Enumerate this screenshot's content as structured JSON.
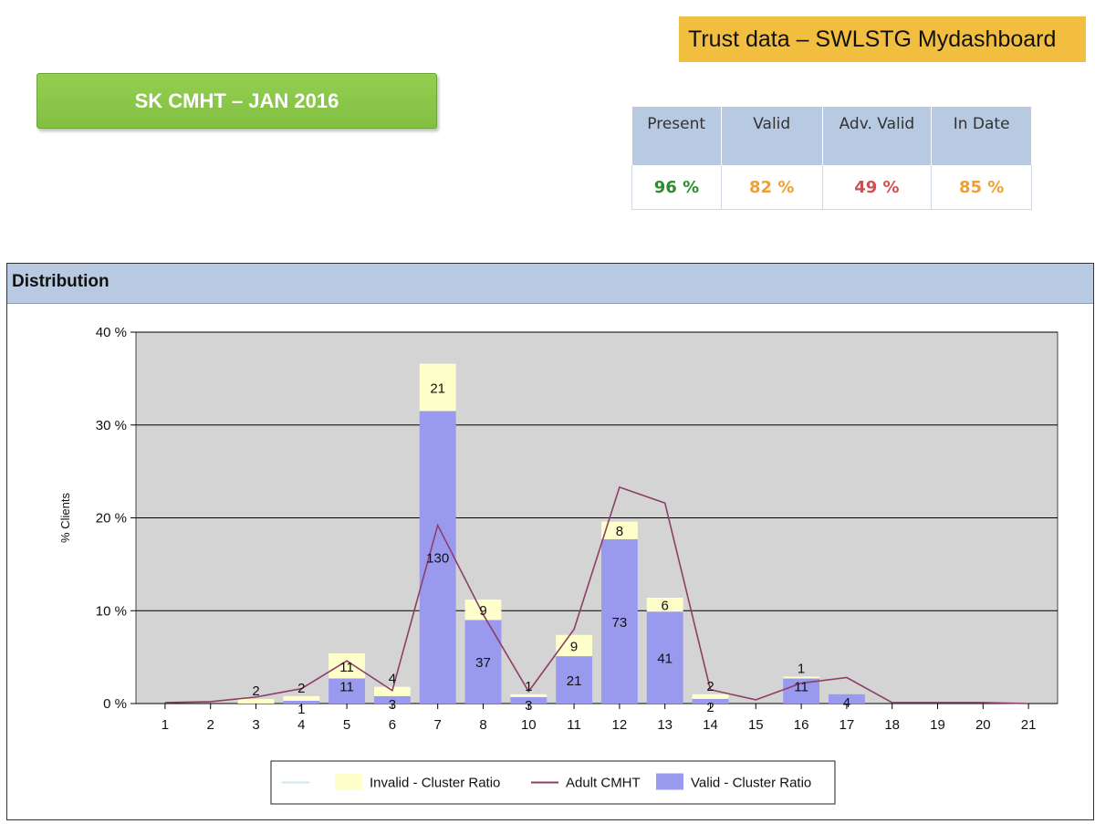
{
  "header": {
    "title": "Trust data – SWLSTG Mydashboard",
    "accent_color": "#f2be3f"
  },
  "team": {
    "label": "SK CMHT – JAN 2016",
    "color": "#8dc84b"
  },
  "stats": {
    "headers": [
      "Present",
      "Valid",
      "Adv. Valid",
      "In Date"
    ],
    "values": [
      "96 %",
      "82 %",
      "49 %",
      "85 %"
    ],
    "colors": [
      "#2e8b2e",
      "#f0a030",
      "#d05050",
      "#f0a030"
    ]
  },
  "panel": {
    "title": "Distribution",
    "header_color": "#b8c9e2"
  },
  "chart_data": {
    "type": "bar",
    "stacked": true,
    "ylabel": "% Clients",
    "xlabel": "",
    "ylim": [
      0,
      40
    ],
    "yticks": [
      "0 %",
      "10 %",
      "20 %",
      "30 %",
      "40 %"
    ],
    "grid": true,
    "legend_position": "bottom",
    "categories": [
      "1",
      "2",
      "3",
      "4",
      "5",
      "6",
      "7",
      "8",
      "10",
      "11",
      "12",
      "13",
      "14",
      "15",
      "16",
      "17",
      "18",
      "19",
      "20",
      "21"
    ],
    "series": [
      {
        "name": "Valid - Cluster Ratio",
        "color": "#9999ee",
        "values": [
          0,
          0,
          0,
          0.3,
          2.7,
          0.8,
          31.5,
          9.0,
          0.7,
          5.1,
          17.7,
          9.9,
          0.5,
          0,
          2.7,
          1.0,
          0,
          0,
          0,
          0
        ],
        "labels": [
          "",
          "",
          "",
          "1",
          "11",
          "3",
          "130",
          "37",
          "3",
          "21",
          "73",
          "41",
          "2",
          "",
          "11",
          "4",
          "",
          "",
          "",
          ""
        ]
      },
      {
        "name": "Invalid - Cluster Ratio",
        "color": "#ffffcc",
        "values": [
          0,
          0,
          0.5,
          0.5,
          2.7,
          1.0,
          5.1,
          2.2,
          0.3,
          2.3,
          1.9,
          1.5,
          0.5,
          0,
          0.2,
          0,
          0,
          0,
          0,
          0
        ],
        "labels": [
          "",
          "",
          "2",
          "2",
          "11",
          "4",
          "21",
          "9",
          "1",
          "9",
          "8",
          "6",
          "2",
          "",
          "1",
          "",
          "",
          "",
          "",
          ""
        ]
      },
      {
        "name": "Adult CMHT",
        "color": "#8e3e68",
        "kind": "line",
        "values": [
          0.1,
          0.2,
          0.7,
          1.6,
          4.6,
          1.4,
          19.2,
          9.6,
          1.3,
          8.0,
          23.3,
          21.6,
          1.5,
          0.4,
          2.2,
          2.8,
          0.1,
          0.1,
          0.1,
          0.0
        ]
      }
    ],
    "legend": [
      {
        "label": "",
        "type": "line",
        "color": "#cfe8ef"
      },
      {
        "label": "Invalid - Cluster Ratio",
        "type": "box",
        "color": "#ffffcc"
      },
      {
        "label": "Adult CMHT",
        "type": "line",
        "color": "#8e3e68"
      },
      {
        "label": "Valid - Cluster Ratio",
        "type": "box",
        "color": "#9999ee"
      }
    ]
  }
}
